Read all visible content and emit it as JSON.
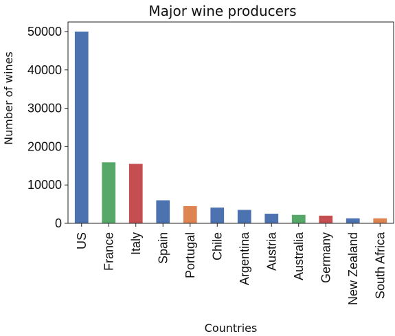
{
  "chart_data": {
    "type": "bar",
    "title": "Major wine producers",
    "xlabel": "Countries",
    "ylabel": "Number of wines",
    "categories": [
      "US",
      "France",
      "Italy",
      "Spain",
      "Portugal",
      "Chile",
      "Argentina",
      "Austria",
      "Australia",
      "Germany",
      "New Zealand",
      "South Africa"
    ],
    "values": [
      50000,
      15900,
      15500,
      6000,
      4500,
      4100,
      3500,
      2500,
      2200,
      2000,
      1300,
      1300
    ],
    "bar_colors": [
      "#4c72b0",
      "#55a868",
      "#c44e52",
      "#4c72b0",
      "#dd8452",
      "#4c72b0",
      "#4c72b0",
      "#4c72b0",
      "#55a868",
      "#c44e52",
      "#4c72b0",
      "#dd8452"
    ],
    "yticks": [
      0,
      10000,
      20000,
      30000,
      40000,
      50000
    ],
    "ylim": [
      0,
      52500
    ],
    "grid": false,
    "legend": "none"
  }
}
